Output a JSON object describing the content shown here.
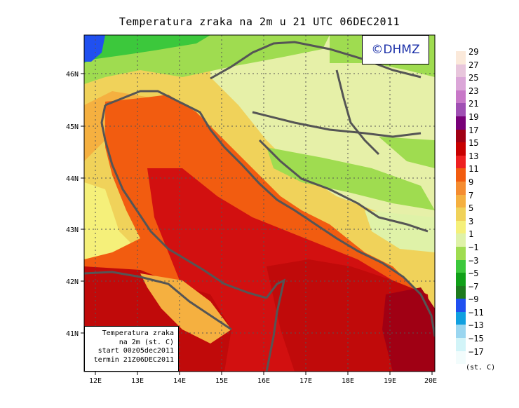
{
  "title": "Temperatura zraka na 2m u 21 UTC 06DEC2011",
  "logo": "©DHMZ",
  "info_box": [
    "Temperatura zraka",
    "na 2m (st. C)",
    "start 00z05dec2011",
    "termin 21Z06DEC2011"
  ],
  "x_ticks": [
    "12E",
    "13E",
    "14E",
    "15E",
    "16E",
    "17E",
    "18E",
    "19E",
    "20E"
  ],
  "y_ticks": [
    "46N",
    "45N",
    "44N",
    "43N",
    "42N",
    "41N"
  ],
  "legend": {
    "labels": [
      "29",
      "27",
      "25",
      "23",
      "21",
      "19",
      "17",
      "15",
      "13",
      "11",
      "9",
      "7",
      "5",
      "3",
      "1",
      "−1",
      "−3",
      "−5",
      "−7",
      "−9",
      "−11",
      "−13",
      "−15",
      "−17"
    ],
    "colors": [
      "#fbe9da",
      "#e8c6dc",
      "#dba6d8",
      "#c878c8",
      "#a050b4",
      "#780078",
      "#a00014",
      "#c80000",
      "#ee2020",
      "#f25c10",
      "#f58c30",
      "#f5b040",
      "#f0d25a",
      "#f5f07a",
      "#dff2a8",
      "#9fdc50",
      "#3cc83c",
      "#10a018",
      "#1e7a1e",
      "#2050f0",
      "#10a0e0",
      "#9ad6f0",
      "#d2f4f8",
      "#f2fcfc"
    ],
    "unit": "(st. C)"
  },
  "colors": {
    "sea_warm": "#d21010",
    "sea_hot": "#c00a0a",
    "coast": "#f05c10",
    "inland": "#f5d25a",
    "cold": "#a8dc60",
    "border": "#555555"
  }
}
